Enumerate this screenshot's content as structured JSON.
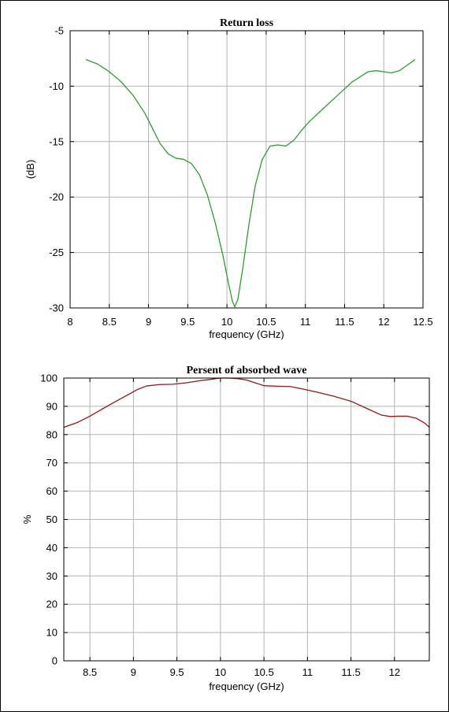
{
  "chart_data": [
    {
      "type": "line",
      "title": "Return loss",
      "xlabel": "frequency (GHz)",
      "ylabel": "(dB)",
      "xlim": [
        8,
        12.5
      ],
      "ylim": [
        -30,
        -5
      ],
      "xticks": [
        8,
        8.5,
        9,
        9.5,
        10,
        10.5,
        11,
        11.5,
        12,
        12.5
      ],
      "xtick_labels": [
        "8",
        "8.5",
        "9",
        "9.5",
        "10",
        "10.5",
        "11",
        "11.5",
        "12",
        "12.5"
      ],
      "yticks": [
        -30,
        -25,
        -20,
        -15,
        -10,
        -5
      ],
      "ytick_labels": [
        "-30",
        "-25",
        "-20",
        "-15",
        "-10",
        "-5"
      ],
      "grid": true,
      "series": [
        {
          "color": "#2e9e2e",
          "x": [
            8.2,
            8.35,
            8.5,
            8.65,
            8.8,
            8.95,
            9.05,
            9.15,
            9.25,
            9.35,
            9.45,
            9.55,
            9.65,
            9.75,
            9.85,
            9.95,
            10.02,
            10.07,
            10.1,
            10.14,
            10.2,
            10.28,
            10.36,
            10.45,
            10.55,
            10.65,
            10.75,
            10.85,
            10.95,
            11.05,
            11.2,
            11.4,
            11.6,
            11.8,
            11.9,
            12.0,
            12.1,
            12.2,
            12.3,
            12.4
          ],
          "y": [
            -7.6,
            -8.0,
            -8.7,
            -9.6,
            -10.8,
            -12.4,
            -13.8,
            -15.2,
            -16.1,
            -16.5,
            -16.6,
            -17.0,
            -18.0,
            -19.8,
            -22.3,
            -25.3,
            -27.8,
            -29.4,
            -29.9,
            -29.2,
            -26.5,
            -22.5,
            -19.0,
            -16.6,
            -15.4,
            -15.3,
            -15.4,
            -14.9,
            -14.0,
            -13.2,
            -12.2,
            -10.9,
            -9.6,
            -8.7,
            -8.6,
            -8.7,
            -8.8,
            -8.6,
            -8.1,
            -7.6
          ]
        }
      ]
    },
    {
      "type": "line",
      "title": "Persent of absorbed wave",
      "xlabel": "frequency (GHz)",
      "ylabel": "%",
      "xlim": [
        8.2,
        12.4
      ],
      "ylim": [
        0,
        100
      ],
      "xticks": [
        8.5,
        9,
        9.5,
        10,
        10.5,
        11,
        11.5,
        12
      ],
      "xtick_labels": [
        "8.5",
        "9",
        "9.5",
        "10",
        "10.5",
        "11",
        "11.5",
        "12"
      ],
      "yticks": [
        0,
        10,
        20,
        30,
        40,
        50,
        60,
        70,
        80,
        90,
        100
      ],
      "ytick_labels": [
        "0",
        "10",
        "20",
        "30",
        "40",
        "50",
        "60",
        "70",
        "80",
        "90",
        "100"
      ],
      "grid": true,
      "series": [
        {
          "color": "#8b1a1a",
          "x": [
            8.2,
            8.35,
            8.5,
            8.65,
            8.8,
            8.95,
            9.05,
            9.15,
            9.3,
            9.45,
            9.6,
            9.75,
            9.9,
            10.0,
            10.1,
            10.2,
            10.3,
            10.4,
            10.5,
            10.65,
            10.8,
            10.95,
            11.1,
            11.3,
            11.5,
            11.7,
            11.85,
            11.95,
            12.05,
            12.15,
            12.25,
            12.35,
            12.4
          ],
          "y": [
            82.6,
            84.2,
            86.5,
            89.2,
            91.8,
            94.3,
            96.0,
            97.2,
            97.7,
            97.8,
            98.3,
            99.0,
            99.6,
            100.0,
            100.0,
            99.8,
            99.3,
            98.3,
            97.3,
            97.1,
            97.0,
            96.1,
            95.1,
            93.6,
            91.8,
            89.0,
            86.9,
            86.4,
            86.5,
            86.5,
            85.8,
            84.0,
            82.6
          ]
        }
      ]
    }
  ]
}
